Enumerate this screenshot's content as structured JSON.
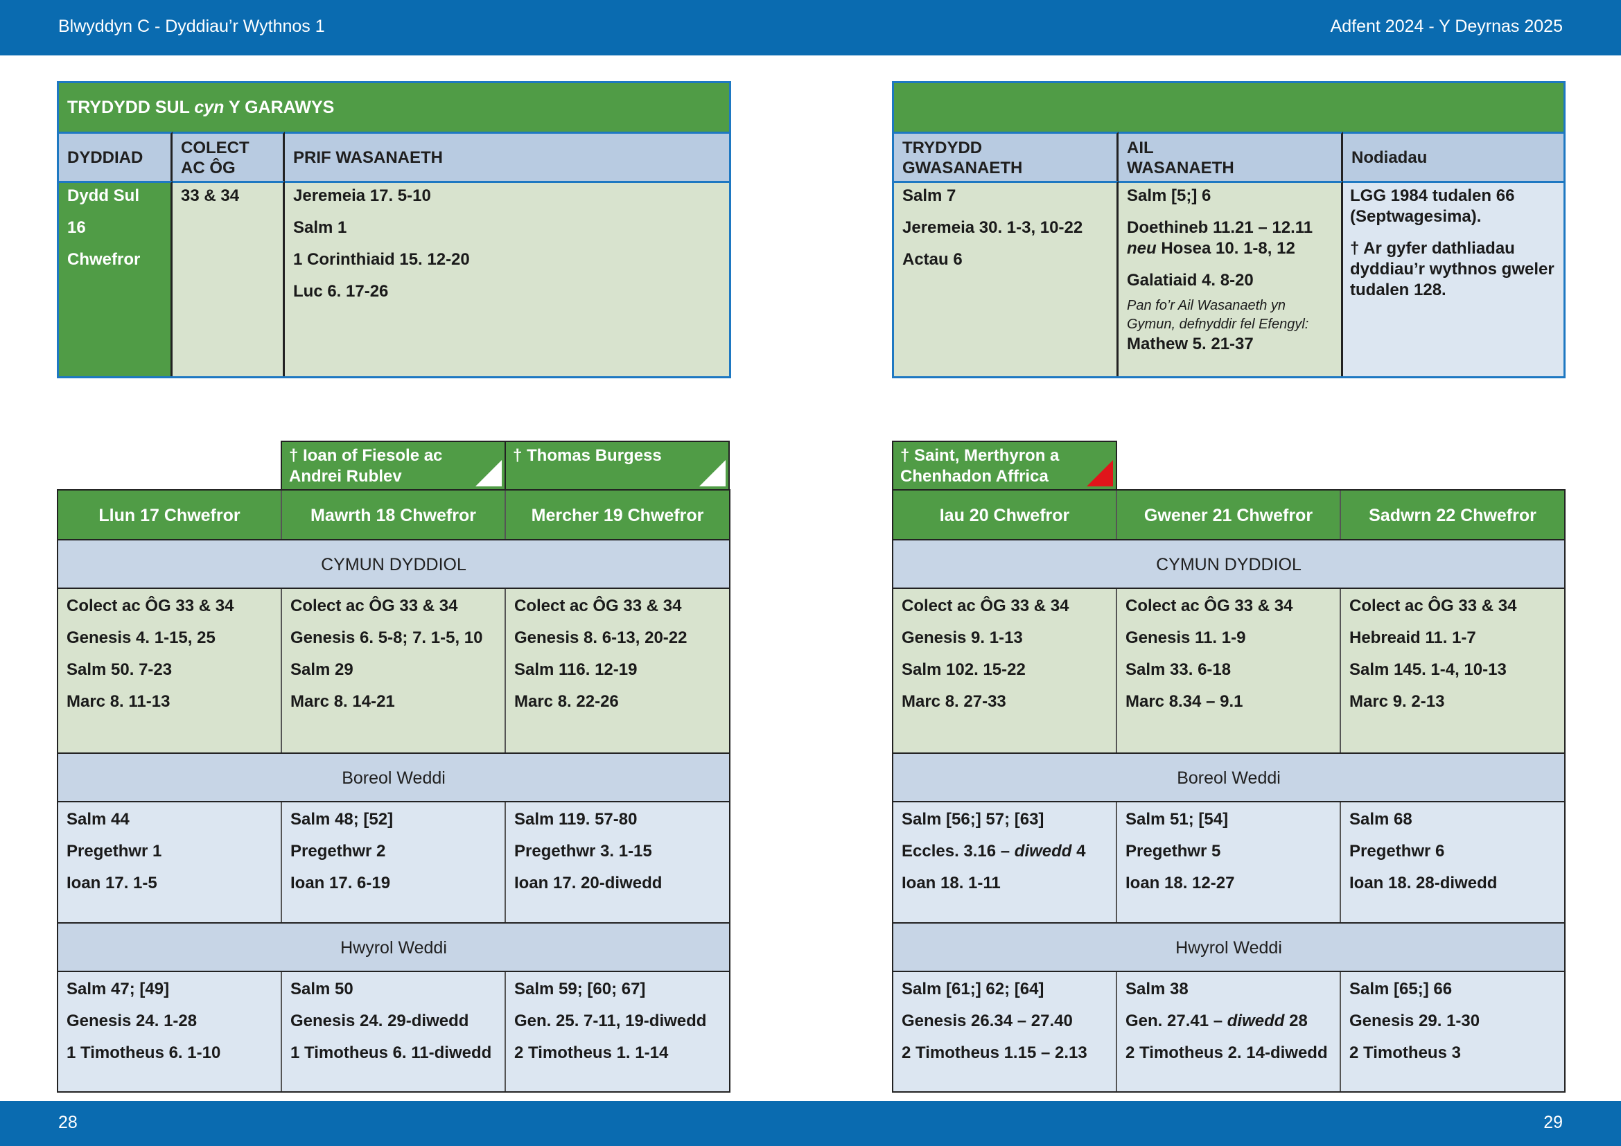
{
  "header": {
    "left": "Blwyddyn  C - Dyddiau’r Wythnos 1",
    "right": "Adfent  2024 - Y Deyrnas 2025"
  },
  "footer": {
    "left_page": "28",
    "right_page": "29"
  },
  "colors": {
    "band": "#0a6bb0",
    "green": "#509c46",
    "header_blue": "#b8cbe1",
    "pale_green": "#d8e3ce",
    "pale_blue": "#dce6f1",
    "red_marker": "#e0151b"
  },
  "sunday": {
    "title_a": "TRYDYDD SUL ",
    "title_italic": "cyn",
    "title_b": " Y GARAWYS",
    "headers": {
      "date": "DYDDIAD",
      "collect": "COLECT AC ÔG",
      "main": "PRIF WASANAETH",
      "third": "TRYDYDD GWASANAETH",
      "second": "AIL WASANAETH",
      "notes": "Nodiadau"
    },
    "date_lines": [
      "Dydd Sul",
      "16",
      "Chwefror"
    ],
    "collect": "33 & 34",
    "main": [
      "Jeremeia 17. 5-10",
      "Salm 1",
      "1 Corinthiaid 15. 12-20",
      "Luc 6. 17-26"
    ],
    "third": [
      "Salm 7",
      "Jeremeia 30. 1-3, 10-22",
      "Actau 6"
    ],
    "second": {
      "l1": "Salm [5;] 6",
      "l2": "Doethineb 11.21 – 12.11",
      "l3_italic": "neu",
      "l3_rest": " Hosea 10. 1-8, 12",
      "l4": "Galatiaid 4. 8-20",
      "note": "Pan fo’r Ail Wasanaeth yn Gymun, defnyddir fel Efengyl:",
      "l5": "Mathew 5. 21-37"
    },
    "notes": [
      "LGG 1984 tudalen 66 (Septwagesima).",
      "† Ar gyfer dathliadau dyddiau’r wythnos gweler tudalen 128."
    ]
  },
  "saints": {
    "tue": "† Ioan of Fiesole ac Andrei Rublev",
    "wed": "† Thomas Burgess",
    "thu": "† Saint, Merthyron a Chenhadon Affrica"
  },
  "sections": {
    "communion": "CYMUN DYDDIOL",
    "morning": "Boreol Weddi",
    "evening": "Hwyrol Weddi"
  },
  "days": [
    {
      "name": "Llun 17 Chwefror",
      "communion": [
        "Colect ac ÔG 33 & 34",
        "Genesis 4. 1-15, 25",
        "Salm 50. 7-23",
        "Marc 8. 11-13"
      ],
      "morning": [
        "Salm 44",
        "Pregethwr 1",
        "Ioan 17. 1-5"
      ],
      "evening": [
        "Salm 47; [49]",
        "Genesis 24. 1-28",
        "1 Timotheus 6. 1-10"
      ]
    },
    {
      "name": "Mawrth 18 Chwefror",
      "communion": [
        "Colect ac ÔG 33 & 34",
        "Genesis 6. 5-8; 7. 1-5, 10",
        "Salm 29",
        "Marc 8. 14-21"
      ],
      "morning": [
        "Salm 48; [52]",
        "Pregethwr 2",
        "Ioan 17. 6-19"
      ],
      "evening": [
        "Salm 50",
        "Genesis 24. 29-diwedd",
        "1 Timotheus 6. 11-diwedd"
      ]
    },
    {
      "name": "Mercher 19 Chwefror",
      "communion": [
        "Colect ac ÔG 33 & 34",
        "Genesis 8. 6-13, 20-22",
        "Salm 116. 12-19",
        "Marc 8. 22-26"
      ],
      "morning": [
        "Salm 119. 57-80",
        "Pregethwr 3. 1-15",
        "Ioan 17. 20-diwedd"
      ],
      "evening": [
        "Salm 59; [60; 67]",
        "Gen. 25. 7-11, 19-diwedd",
        "2 Timotheus 1. 1-14"
      ]
    },
    {
      "name": "Iau 20 Chwefror",
      "communion": [
        "Colect ac ÔG 33 & 34",
        "Genesis 9. 1-13",
        "Salm 102. 15-22",
        "Marc 8. 27-33"
      ],
      "morning": [
        "Salm [56;] 57; [63]",
        "Eccles. 3.16 – ",
        "Ioan 18. 1-11"
      ],
      "morning_l2_italic": "diwedd",
      "morning_l2_rest": " 4",
      "evening": [
        "Salm [61;] 62; [64]",
        "Genesis 26.34 – 27.40",
        "2 Timotheus 1.15 – 2.13"
      ]
    },
    {
      "name": "Gwener 21 Chwefror",
      "communion": [
        "Colect ac ÔG 33 & 34",
        "Genesis 11. 1-9",
        "Salm 33. 6-18",
        "Marc 8.34 – 9.1"
      ],
      "morning": [
        "Salm 51; [54]",
        "Pregethwr 5",
        "Ioan 18. 12-27"
      ],
      "evening": [
        "Salm 38",
        "Gen. 27.41 – ",
        "2 Timotheus 2. 14-diwedd"
      ],
      "evening_l2_italic": "diwedd",
      "evening_l2_rest": " 28"
    },
    {
      "name": "Sadwrn 22 Chwefror",
      "communion": [
        "Colect ac ÔG 33 & 34",
        "Hebreaid 11. 1-7",
        "Salm 145. 1-4, 10-13",
        "Marc 9. 2-13"
      ],
      "morning": [
        "Salm 68",
        "Pregethwr 6",
        "Ioan 18. 28-diwedd"
      ],
      "evening": [
        "Salm [65;] 66",
        "Genesis 29. 1-30",
        "2 Timotheus 3"
      ]
    }
  ]
}
